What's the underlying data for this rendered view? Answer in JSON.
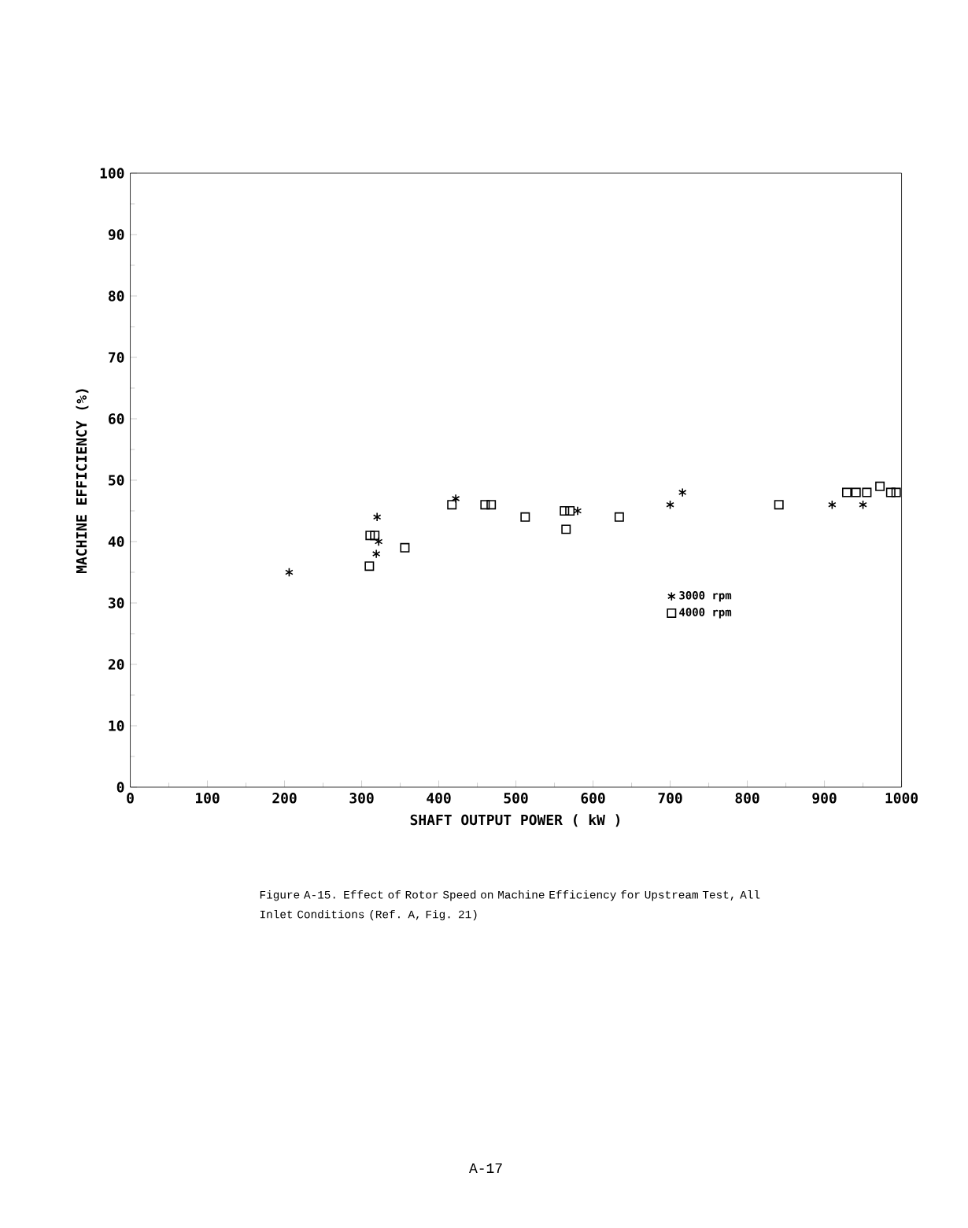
{
  "chart_data": {
    "type": "scatter",
    "xlabel": "SHAFT OUTPUT POWER ( kW )",
    "ylabel": "MACHINE EFFICIENCY (%)",
    "xlim": [
      0,
      1000
    ],
    "ylim": [
      0,
      100
    ],
    "xticks": [
      0,
      100,
      200,
      300,
      400,
      500,
      600,
      700,
      800,
      900,
      1000
    ],
    "yticks": [
      0,
      10,
      20,
      30,
      40,
      50,
      60,
      70,
      80,
      90,
      100
    ],
    "grid": false,
    "legend": "right",
    "series": [
      {
        "name": "3000 rpm",
        "color": "#000000",
        "marker": "cross",
        "x": [
          206,
          320,
          322,
          319,
          422,
          580,
          700,
          716,
          910,
          950
        ],
        "values": [
          35,
          44,
          40,
          38,
          47,
          45,
          46,
          48,
          46,
          46
        ]
      },
      {
        "name": "4000 rpm",
        "color": "#000000",
        "marker": "square",
        "x": [
          310,
          311,
          317,
          356,
          417,
          460,
          468,
          512,
          563,
          570,
          565,
          634,
          841,
          929,
          941,
          955,
          972,
          986,
          993
        ],
        "values": [
          36,
          41,
          41,
          39,
          46,
          46,
          46,
          44,
          45,
          45,
          42,
          44,
          46,
          48,
          48,
          48,
          49,
          48,
          48
        ]
      }
    ],
    "annotations": [
      "Figure A-15.  Effect of Rotor Speed on Machine Efficiency for Upstream Test, All Inlet Conditions (Ref. A, Fig. 21)",
      "A-17"
    ]
  }
}
